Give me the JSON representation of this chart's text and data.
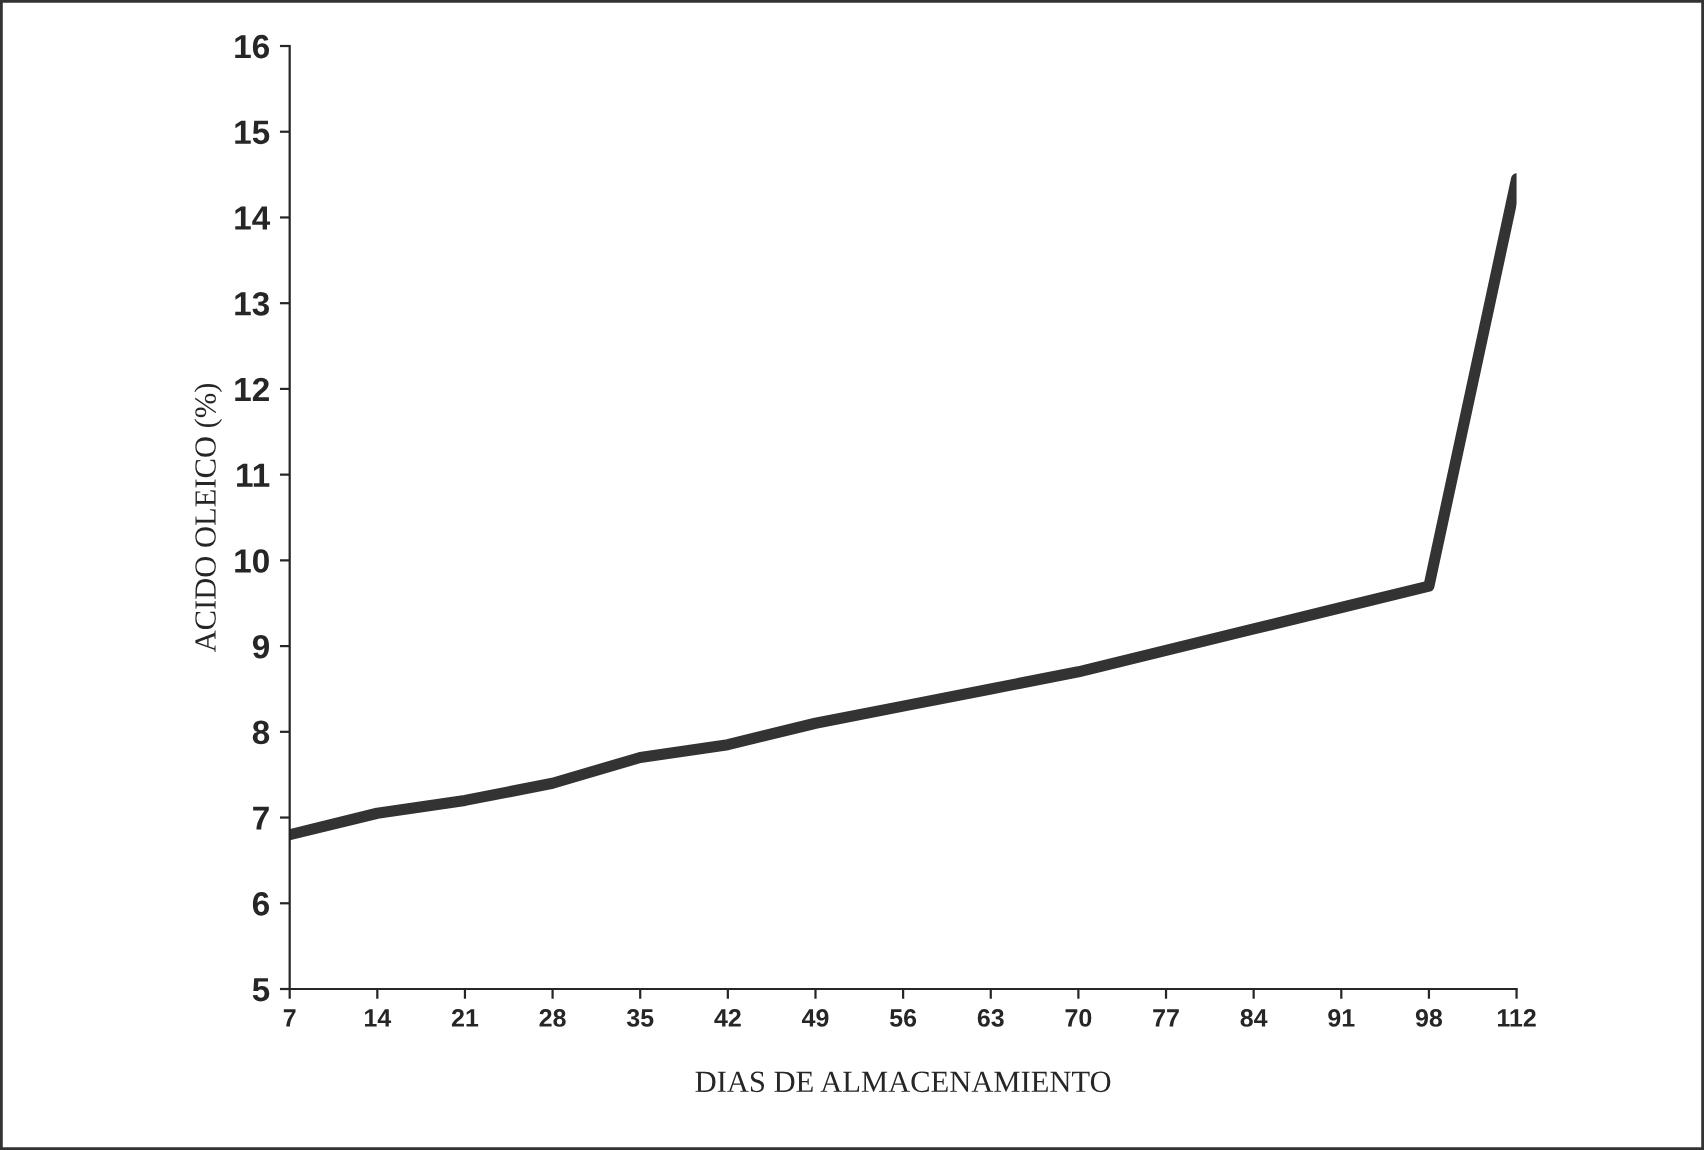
{
  "chart_data": {
    "type": "line",
    "xlabel": "DIAS DE ALMACENAMIENTO",
    "ylabel": "ACIDO OLEICO (%)",
    "categories": [
      "7",
      "14",
      "21",
      "28",
      "35",
      "42",
      "49",
      "56",
      "63",
      "70",
      "77",
      "84",
      "91",
      "98",
      "112"
    ],
    "series": [
      {
        "color": "#333333",
        "values": [
          6.8,
          7.05,
          7.2,
          7.4,
          7.7,
          7.85,
          8.1,
          8.3,
          8.5,
          8.7,
          8.95,
          9.2,
          9.45,
          9.7,
          14.45
        ]
      }
    ],
    "ylim": [
      5,
      16
    ],
    "yticks": [
      5,
      6,
      7,
      8,
      9,
      10,
      11,
      12,
      13,
      14,
      15,
      16
    ],
    "grid": false,
    "legend": false,
    "marker": "none",
    "line_style": "solid"
  }
}
